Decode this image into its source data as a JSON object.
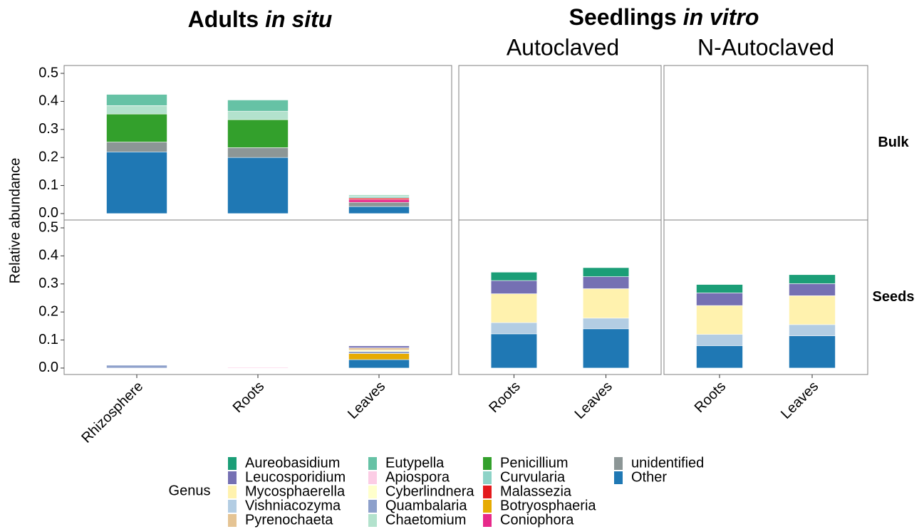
{
  "chart_data": {
    "type": "bar",
    "title_groups": [
      {
        "name": "Adults",
        "qualifier": "in situ"
      },
      {
        "name": "Seedlings",
        "qualifier": "in vitro"
      }
    ],
    "columns": [
      {
        "group": 0,
        "categories": [
          "Rhizosphere",
          "Roots",
          "Leaves"
        ]
      },
      {
        "group": 1,
        "title": "Autoclaved",
        "categories": [
          "Roots",
          "Leaves"
        ]
      },
      {
        "group": 1,
        "title": "N-Autoclaved",
        "categories": [
          "Roots",
          "Leaves"
        ]
      }
    ],
    "rows": [
      "Bulk",
      "Seeds"
    ],
    "ylabel": "Relative abundance",
    "ylim": [
      -0.023,
      0.528
    ],
    "yticks": [
      {
        "value": 0,
        "label": "0.0"
      },
      0.1,
      0.2,
      0.3,
      0.4,
      0.5
    ],
    "legend_title": "Genus",
    "series": [
      {
        "name": "Aureobasidium",
        "color": "#1b9e77",
        "values": [
          null,
          null,
          null,
          null,
          null,
          null,
          null,
          null,
          null,
          null,
          0.03,
          0.032,
          0.03,
          0.032
        ]
      },
      {
        "name": "Leucosporidium",
        "color": "#7570b3",
        "values": [
          null,
          null,
          null,
          null,
          null,
          null,
          null,
          null,
          null,
          0.007,
          0.047,
          0.043,
          0.045,
          0.043
        ]
      },
      {
        "name": "Mycosphaerella",
        "color": "#fff2ae",
        "values": [
          null,
          null,
          null,
          null,
          null,
          null,
          null,
          null,
          null,
          null,
          0.103,
          0.105,
          0.103,
          0.103
        ]
      },
      {
        "name": "Vishniacozyma",
        "color": "#b3cde3",
        "values": [
          null,
          null,
          null,
          null,
          null,
          null,
          null,
          null,
          null,
          null,
          0.04,
          0.038,
          0.04,
          0.04
        ]
      },
      {
        "name": "Pyrenochaeta",
        "color": "#e5c494",
        "values": [
          null,
          null,
          null,
          null,
          null,
          null,
          null,
          null,
          null,
          0.008,
          null,
          null,
          null,
          null
        ]
      },
      {
        "name": "Eutypella",
        "color": "#66c2a5",
        "values": [
          0.04,
          0.04,
          null,
          null,
          null,
          null,
          null,
          null,
          null,
          null,
          null,
          null,
          null,
          null
        ]
      },
      {
        "name": "Apiospora",
        "color": "#fccde5",
        "values": [
          null,
          null,
          null,
          null,
          null,
          null,
          null,
          null,
          0.003,
          null,
          null,
          null,
          null,
          null
        ]
      },
      {
        "name": "Cyberlindnera",
        "color": "#ffffcc",
        "values": [
          null,
          null,
          null,
          null,
          null,
          null,
          null,
          null,
          null,
          0.005,
          null,
          null,
          null,
          null
        ]
      },
      {
        "name": "Quambalaria",
        "color": "#8da0cb",
        "values": [
          null,
          null,
          null,
          null,
          null,
          null,
          null,
          0.01,
          null,
          0.007,
          null,
          null,
          null,
          null
        ]
      },
      {
        "name": "Chaetomium",
        "color": "#b3e2cd",
        "values": [
          0.03,
          0.03,
          0.007,
          null,
          null,
          null,
          null,
          null,
          null,
          null,
          null,
          null,
          null,
          null
        ]
      },
      {
        "name": "Penicillium",
        "color": "#33a02c",
        "values": [
          0.1,
          0.1,
          null,
          null,
          null,
          null,
          null,
          null,
          null,
          null,
          null,
          null,
          null,
          null
        ]
      },
      {
        "name": "Curvularia",
        "color": "#8dd3c7",
        "values": [
          null,
          null,
          0.005,
          null,
          null,
          null,
          null,
          null,
          null,
          null,
          null,
          null,
          null,
          null
        ]
      },
      {
        "name": "Malassezia",
        "color": "#e31a1c",
        "values": [
          null,
          null,
          0.005,
          null,
          null,
          null,
          null,
          null,
          null,
          null,
          null,
          null,
          null,
          null
        ]
      },
      {
        "name": "Botryosphaeria",
        "color": "#e6ab02",
        "values": [
          null,
          null,
          null,
          null,
          null,
          null,
          null,
          null,
          null,
          0.022,
          null,
          null,
          null,
          null
        ]
      },
      {
        "name": "Coniophora",
        "color": "#e7298a",
        "values": [
          null,
          null,
          0.01,
          null,
          null,
          null,
          null,
          null,
          null,
          null,
          null,
          null,
          null,
          null
        ]
      },
      {
        "name": "unidentified",
        "color": "#8c9696",
        "values": [
          0.035,
          0.035,
          0.015,
          null,
          null,
          null,
          null,
          null,
          null,
          null,
          null,
          null,
          null,
          null
        ]
      },
      {
        "name": "Other",
        "color": "#1f78b4",
        "values": [
          0.22,
          0.2,
          0.025,
          null,
          null,
          null,
          null,
          null,
          null,
          0.03,
          0.122,
          0.14,
          0.08,
          0.115
        ]
      }
    ]
  }
}
